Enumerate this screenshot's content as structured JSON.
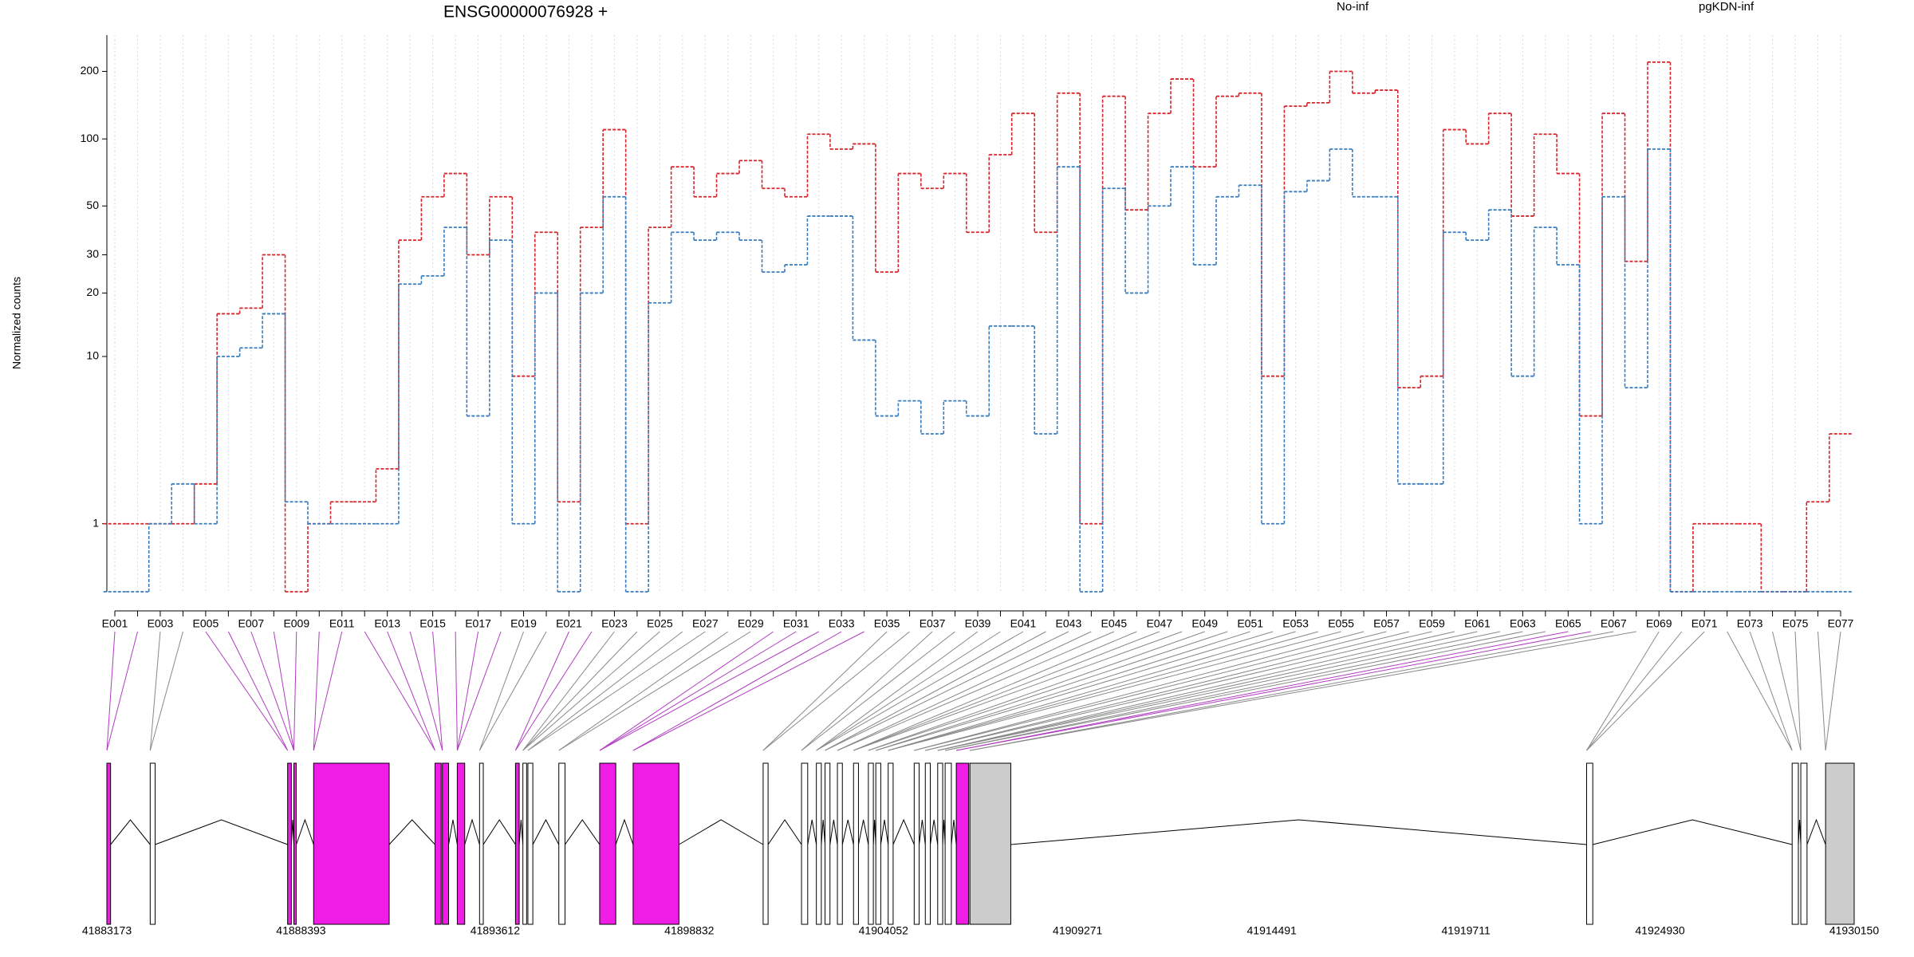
{
  "chart_data": [
    {
      "type": "step",
      "title": "ENSG00000076928 +",
      "y_label": "Normalized counts",
      "yscale": "log1p",
      "grid": true,
      "categories": [
        "E001",
        null,
        "E003",
        null,
        "E005",
        null,
        "E007",
        null,
        "E009",
        null,
        "E011",
        null,
        "E013",
        null,
        "E015",
        null,
        "E017",
        null,
        "E019",
        null,
        "E021",
        null,
        "E023",
        null,
        "E025",
        null,
        "E027",
        null,
        "E029",
        null,
        "E031",
        null,
        "E033",
        null,
        "E035",
        null,
        "E037",
        null,
        "E039",
        null,
        "E041",
        null,
        "E043",
        null,
        "E045",
        null,
        "E047",
        null,
        "E049",
        null,
        "E051",
        null,
        "E053",
        null,
        "E055",
        null,
        "E057",
        null,
        "E059",
        null,
        "E061",
        null,
        "E063",
        null,
        "E065",
        null,
        "E067",
        null,
        "E069",
        null,
        "E071",
        null,
        "E073",
        null,
        "E075",
        null,
        "E077"
      ],
      "ylim": [
        0,
        290
      ],
      "yticks": [
        1,
        10,
        20,
        30,
        50,
        100,
        200
      ],
      "series": [
        {
          "name": "No-inf",
          "color": "#d7262b",
          "values": [
            1,
            1,
            1,
            1,
            2,
            16,
            17,
            30,
            0,
            1,
            1.5,
            1.5,
            2.5,
            35,
            55,
            70,
            30,
            55,
            8,
            38,
            1.5,
            40,
            110,
            1,
            40,
            75,
            55,
            70,
            80,
            60,
            55,
            105,
            90,
            95,
            25,
            70,
            60,
            70,
            38,
            85,
            130,
            38,
            160,
            1,
            155,
            48,
            130,
            185,
            75,
            155,
            160,
            8,
            140,
            145,
            200,
            160,
            165,
            7,
            8,
            110,
            95,
            130,
            45,
            105,
            70,
            5,
            130,
            28,
            220,
            0,
            1,
            1,
            1,
            0,
            0,
            1.5,
            4
          ]
        },
        {
          "name": "pgKDN-inf",
          "color": "#3a7dbf",
          "values": [
            0,
            0,
            1,
            2,
            1,
            10,
            11,
            16,
            1.5,
            1,
            1,
            1,
            1,
            22,
            24,
            40,
            5,
            35,
            1,
            20,
            0,
            20,
            55,
            0,
            18,
            38,
            35,
            38,
            35,
            25,
            27,
            45,
            45,
            12,
            5,
            6,
            4,
            6,
            5,
            14,
            14,
            4,
            75,
            0,
            60,
            20,
            50,
            75,
            27,
            55,
            62,
            1,
            58,
            65,
            90,
            55,
            55,
            2,
            2,
            38,
            35,
            48,
            8,
            40,
            27,
            1,
            55,
            7,
            90,
            0,
            0,
            0,
            0,
            0,
            0,
            0,
            0
          ]
        }
      ]
    },
    {
      "type": "gene_model",
      "xlim": [
        41883173,
        41930150
      ],
      "xticks": [
        41883173,
        41888393,
        41893612,
        41898832,
        41904052,
        41909271,
        41914491,
        41919711,
        41924930,
        41930150
      ],
      "blocks": [
        {
          "start": 41883173,
          "end": 41883273,
          "color": "#f01de6"
        },
        {
          "start": 41884338,
          "end": 41884471,
          "color": "#ffffff"
        },
        {
          "start": 41888033,
          "end": 41888133,
          "color": "#f01de6"
        },
        {
          "start": 41888200,
          "end": 41888266,
          "color": "#f01de6"
        },
        {
          "start": 41888732,
          "end": 41890763,
          "color": "#f01de6"
        },
        {
          "start": 41891995,
          "end": 41892161,
          "color": "#f01de6"
        },
        {
          "start": 41892194,
          "end": 41892361,
          "color": "#f01de6"
        },
        {
          "start": 41892594,
          "end": 41892794,
          "color": "#f01de6"
        },
        {
          "start": 41893193,
          "end": 41893293,
          "color": "#ffffff"
        },
        {
          "start": 41894159,
          "end": 41894259,
          "color": "#f01de6"
        },
        {
          "start": 41894358,
          "end": 41894458,
          "color": "#ffffff"
        },
        {
          "start": 41894492,
          "end": 41894625,
          "color": "#ffffff"
        },
        {
          "start": 41895324,
          "end": 41895490,
          "color": "#ffffff"
        },
        {
          "start": 41896422,
          "end": 41896855,
          "color": "#f01de6"
        },
        {
          "start": 41897321,
          "end": 41898553,
          "color": "#f01de6"
        },
        {
          "start": 41900817,
          "end": 41900950,
          "color": "#ffffff"
        },
        {
          "start": 41901849,
          "end": 41902015,
          "color": "#ffffff"
        },
        {
          "start": 41902248,
          "end": 41902381,
          "color": "#ffffff"
        },
        {
          "start": 41902481,
          "end": 41902614,
          "color": "#ffffff"
        },
        {
          "start": 41902814,
          "end": 41902947,
          "color": "#ffffff"
        },
        {
          "start": 41903247,
          "end": 41903380,
          "color": "#ffffff"
        },
        {
          "start": 41903646,
          "end": 41903780,
          "color": "#ffffff"
        },
        {
          "start": 41903846,
          "end": 41903979,
          "color": "#ffffff"
        },
        {
          "start": 41904179,
          "end": 41904312,
          "color": "#ffffff"
        },
        {
          "start": 41904878,
          "end": 41905011,
          "color": "#ffffff"
        },
        {
          "start": 41905177,
          "end": 41905311,
          "color": "#ffffff"
        },
        {
          "start": 41905510,
          "end": 41905644,
          "color": "#ffffff"
        },
        {
          "start": 41905710,
          "end": 41905877,
          "color": "#ffffff"
        },
        {
          "start": 41906010,
          "end": 41906343,
          "color": "#f01de6"
        },
        {
          "start": 41906376,
          "end": 41907475,
          "color": "#cccccc"
        },
        {
          "start": 41922956,
          "end": 41923122,
          "color": "#ffffff"
        },
        {
          "start": 41928482,
          "end": 41928649,
          "color": "#ffffff"
        },
        {
          "start": 41928715,
          "end": 41928882,
          "color": "#ffffff"
        },
        {
          "start": 41929381,
          "end": 41930150,
          "color": "#cccccc"
        }
      ]
    }
  ]
}
